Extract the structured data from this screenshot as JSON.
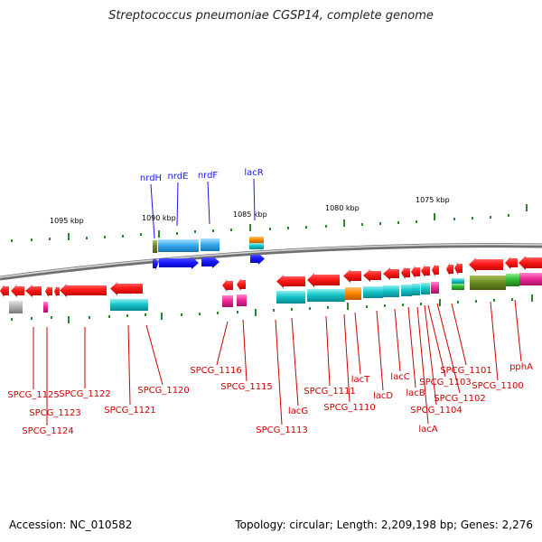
{
  "title": "Streptococcus pneumoniae CGSP14, complete genome",
  "footer": {
    "accession": "Accession: NC_010582",
    "summary": "Topology: circular; Length: 2,209,198 bp; Genes: 2,276"
  },
  "scale_ticks": [
    "1095 kbp",
    "1090 kbp",
    "1085 kbp",
    "1080 kbp",
    "1075 kbp"
  ],
  "top_gene_labels": [
    "nrdH",
    "nrdE",
    "nrdF",
    "lacR"
  ],
  "bottom_gene_labels": [
    "SPCG_1125",
    "SPCG_1123",
    "SPCG_1124",
    "SPCG_1122",
    "SPCG_1121",
    "SPCG_1120",
    "SPCG_1116",
    "SPCG_1115",
    "SPCG_1113",
    "lacG",
    "SPCG_1111",
    "SPCG_1110",
    "lacT",
    "lacD",
    "lacC",
    "lacB",
    "lacA",
    "SPCG_1104",
    "SPCG_1103",
    "SPCG_1102",
    "SPCG_1101",
    "SPCG_1100",
    "pphA"
  ],
  "colors": {
    "forward_gene": "#1a1aee",
    "forward_label": "#1a1aee",
    "reverse_gene": "#ee1111",
    "reverse_label": "#cc0000",
    "cds_cyan": "#17c4cc",
    "cog_blue": "#33aaee",
    "cog_orange": "#ff8800",
    "cog_magenta": "#ee2a99",
    "cog_olive": "#6b8e23",
    "cog_green": "#33bb33",
    "cog_gray": "#aaaaaa",
    "tick_green": "#2a8a2a",
    "backbone": "#888888"
  }
}
